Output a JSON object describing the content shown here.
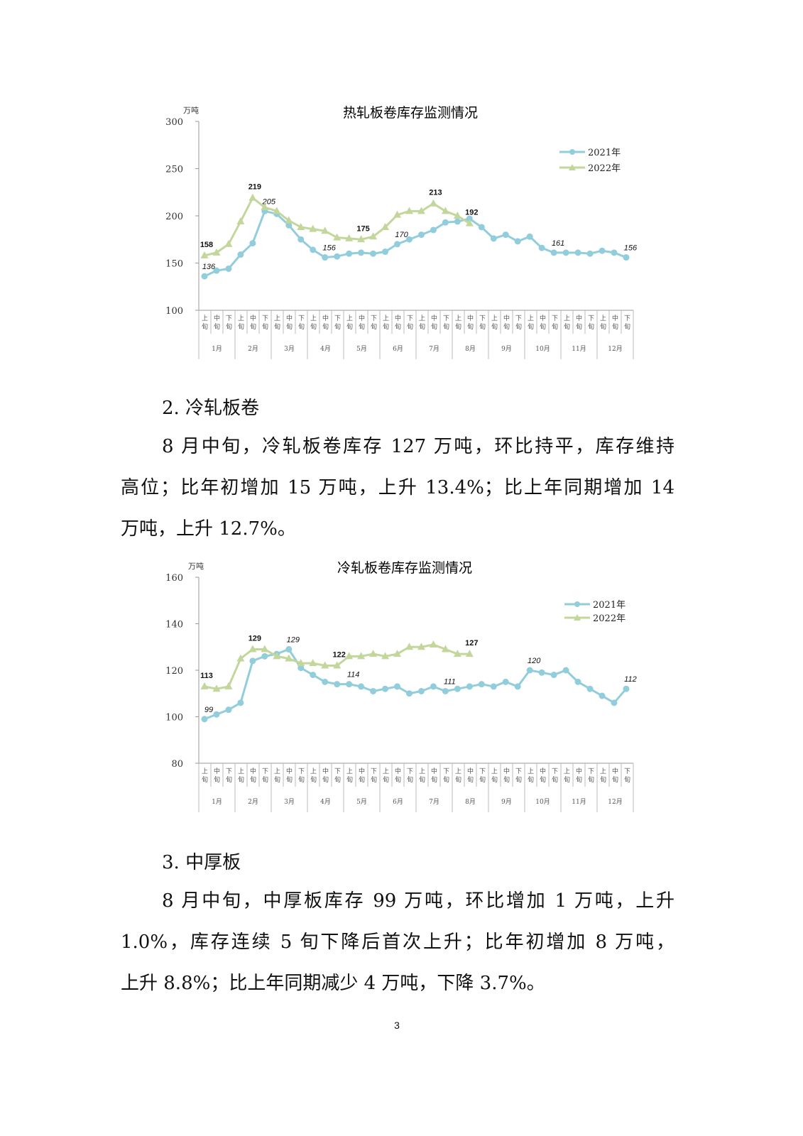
{
  "chart_data": [
    {
      "type": "line",
      "title": "热轧板卷库存监测情况",
      "ylabel": "万吨",
      "ylim": [
        100,
        300
      ],
      "yticks": [
        100,
        150,
        200,
        250,
        300
      ],
      "legend_position": "top-right",
      "months": [
        "1月",
        "2月",
        "3月",
        "4月",
        "5月",
        "6月",
        "7月",
        "8月",
        "9月",
        "10月",
        "11月",
        "12月"
      ],
      "periods": [
        "上旬",
        "中旬",
        "下旬"
      ],
      "series": [
        {
          "name": "2021年",
          "color": "#92CDDC",
          "marker": "circle",
          "values": [
            136,
            142,
            144,
            159,
            171,
            205,
            202,
            190,
            175,
            164,
            156,
            157,
            160,
            161,
            160,
            162,
            170,
            175,
            180,
            185,
            193,
            194,
            197,
            188,
            176,
            180,
            173,
            178,
            166,
            161,
            161,
            161,
            160,
            163,
            161,
            156
          ],
          "labels": [
            {
              "index": 0,
              "text": "136"
            },
            {
              "index": 5,
              "text": "205"
            },
            {
              "index": 10,
              "text": "156"
            },
            {
              "index": 16,
              "text": "170"
            },
            {
              "index": 29,
              "text": "161"
            },
            {
              "index": 35,
              "text": "156"
            }
          ]
        },
        {
          "name": "2022年",
          "color": "#C3D69B",
          "marker": "triangle",
          "values": [
            158,
            161,
            170,
            194,
            219,
            209,
            205,
            195,
            188,
            186,
            184,
            177,
            176,
            175,
            178,
            188,
            201,
            205,
            205,
            213,
            205,
            200,
            192
          ],
          "labels": [
            {
              "index": 0,
              "text": "158"
            },
            {
              "index": 4,
              "text": "219"
            },
            {
              "index": 13,
              "text": "175"
            },
            {
              "index": 19,
              "text": "213"
            },
            {
              "index": 22,
              "text": "192"
            }
          ]
        }
      ]
    },
    {
      "type": "line",
      "title": "冷轧板卷库存监测情况",
      "ylabel": "万吨",
      "ylim": [
        80,
        160
      ],
      "yticks": [
        80,
        100,
        120,
        140,
        160
      ],
      "legend_position": "top-right",
      "months": [
        "1月",
        "2月",
        "3月",
        "4月",
        "5月",
        "6月",
        "7月",
        "8月",
        "9月",
        "10月",
        "11月",
        "12月"
      ],
      "periods": [
        "上旬",
        "中旬",
        "下旬"
      ],
      "series": [
        {
          "name": "2021年",
          "color": "#92CDDC",
          "marker": "circle",
          "values": [
            99,
            101,
            103,
            106,
            124,
            126,
            127,
            129,
            121,
            118,
            115,
            114,
            114,
            113,
            111,
            112,
            113,
            110,
            111,
            113,
            111,
            112,
            113,
            114,
            113,
            115,
            113,
            120,
            119,
            118,
            120,
            115,
            112,
            109,
            106,
            112
          ],
          "labels": [
            {
              "index": 0,
              "text": "99"
            },
            {
              "index": 7,
              "text": "129"
            },
            {
              "index": 12,
              "text": "114"
            },
            {
              "index": 20,
              "text": "111"
            },
            {
              "index": 27,
              "text": "120"
            },
            {
              "index": 35,
              "text": "112"
            }
          ]
        },
        {
          "name": "2022年",
          "color": "#C3D69B",
          "marker": "triangle",
          "values": [
            113,
            112,
            113,
            125,
            129,
            129,
            126,
            125,
            123,
            123,
            122,
            122,
            126,
            126,
            127,
            126,
            127,
            130,
            130,
            131,
            129,
            127,
            127
          ],
          "labels": [
            {
              "index": 0,
              "text": "113"
            },
            {
              "index": 4,
              "text": "129"
            },
            {
              "index": 11,
              "text": "122"
            },
            {
              "index": 22,
              "text": "127"
            }
          ]
        }
      ]
    }
  ],
  "section2": {
    "heading": "2. 冷轧板卷",
    "lines": [
      "8 月中旬，冷轧板卷库存 127 万吨，环比持平，库存维持",
      "高位；比年初增加 15 万吨，上升 13.4%；比上年同期增加 14",
      "万吨，上升 12.7%。"
    ]
  },
  "section3": {
    "heading": "3. 中厚板",
    "lines": [
      "8 月中旬，中厚板库存 99 万吨，环比增加 1 万吨，上升",
      "1.0%，库存连续 5 旬下降后首次上升；比年初增加 8 万吨，",
      "上升 8.8%；比上年同期减少 4 万吨，下降 3.7%。"
    ]
  },
  "page_number": "3"
}
